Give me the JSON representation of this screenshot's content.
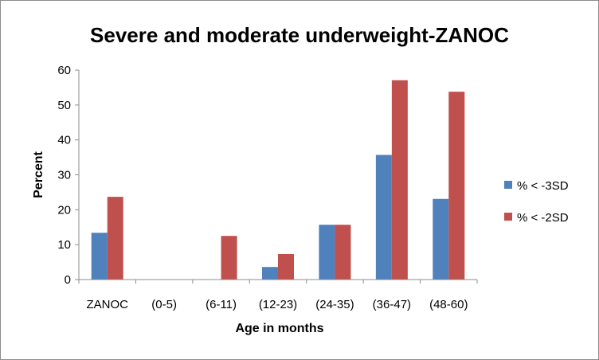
{
  "chart_data": {
    "type": "bar",
    "title": "Severe and moderate underweight-ZANOC",
    "xlabel": "Age in months",
    "ylabel": "Percent",
    "ylim": [
      0,
      60
    ],
    "yticks": [
      0,
      10,
      20,
      30,
      40,
      50,
      60
    ],
    "grid": false,
    "legend_position": "right",
    "categories": [
      "ZANOC",
      "(0-5)",
      "(6-11)",
      "(12-23)",
      "(24-35)",
      "(36-47)",
      "(48-60)"
    ],
    "series": [
      {
        "name": "% < -3SD",
        "color": "#4F81BD",
        "values": [
          13.4,
          0,
          0,
          3.6,
          15.7,
          35.7,
          23.1
        ]
      },
      {
        "name": "% < -2SD",
        "color": "#C0504D",
        "values": [
          23.7,
          0,
          12.5,
          7.3,
          15.7,
          57.1,
          53.8
        ]
      }
    ]
  }
}
